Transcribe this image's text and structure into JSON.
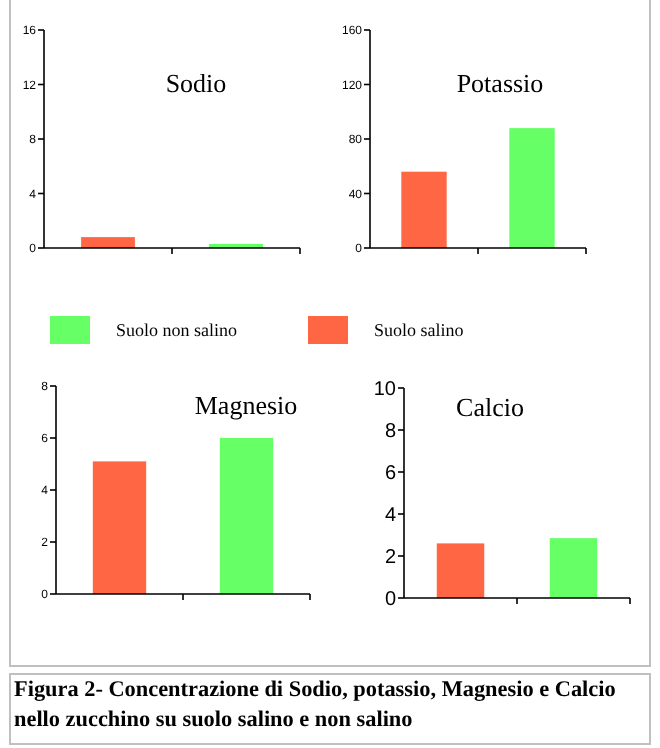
{
  "chart_data": [
    {
      "type": "bar",
      "title": "Sodio",
      "categories": [
        null,
        null
      ],
      "ylim": [
        0,
        16
      ],
      "yticks": [
        0,
        4,
        8,
        12,
        16
      ],
      "legend": "bottom",
      "series": [
        {
          "name": "Suolo salino",
          "color": "#ff6644",
          "values": [
            0.8,
            null
          ]
        },
        {
          "name": "Suolo non salino",
          "color": "#66ff66",
          "values": [
            null,
            0.3
          ]
        }
      ]
    },
    {
      "type": "bar",
      "title": "Potassio",
      "categories": [
        null,
        null
      ],
      "ylim": [
        0,
        160
      ],
      "yticks": [
        0,
        40,
        80,
        120,
        160
      ],
      "series": [
        {
          "color": "#ff6644",
          "values": [
            56,
            null
          ]
        },
        {
          "color": "#66ff66",
          "values": [
            null,
            88
          ]
        }
      ]
    },
    {
      "type": "bar",
      "title": "Magnesio",
      "categories": [
        null,
        null
      ],
      "ylim": [
        0,
        8
      ],
      "yticks": [
        0,
        2,
        4,
        6,
        8
      ],
      "series": [
        {
          "color": "#ff6644",
          "values": [
            5.1,
            null
          ]
        },
        {
          "color": "#66ff66",
          "values": [
            null,
            6
          ]
        }
      ]
    },
    {
      "type": "bar",
      "title": "Calcio",
      "categories": [
        null,
        null
      ],
      "ylim": [
        0,
        10
      ],
      "yticks": [
        0,
        2,
        4,
        6,
        8,
        10
      ],
      "annotations": [
        "Figura 2- Concentrazione di Sodio, potassio, Magnesio e Calcio nello zucchino su suolo salino e non salino"
      ],
      "series": [
        {
          "color": "#ff6644",
          "values": [
            2.6,
            null
          ]
        },
        {
          "color": "#66ff66",
          "values": [
            null,
            2.85
          ]
        }
      ]
    }
  ]
}
